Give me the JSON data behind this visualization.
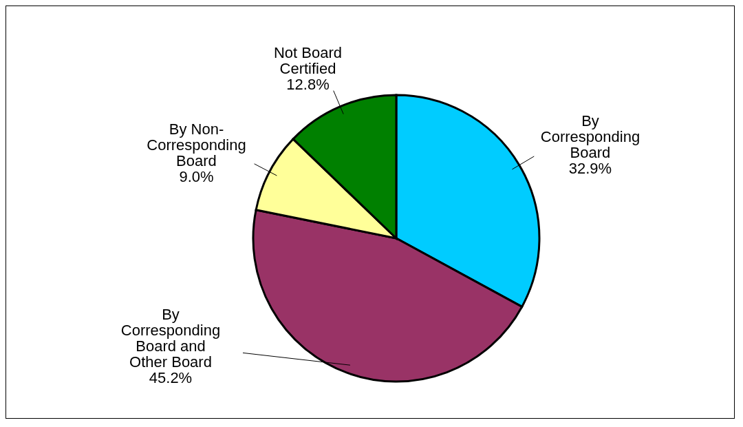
{
  "chart_data": {
    "type": "pie",
    "categories": [
      "By Corresponding Board",
      "By Corresponding Board and Other Board",
      "By Non-Corresponding Board",
      "Not Board Certified"
    ],
    "values": [
      32.9,
      45.2,
      9.0,
      12.8
    ],
    "value_labels": [
      "32.9%",
      "45.2%",
      "9.0%",
      "12.8%"
    ],
    "colors": [
      "#00ccff",
      "#993366",
      "#ffff99",
      "#008000"
    ],
    "legend": false
  }
}
